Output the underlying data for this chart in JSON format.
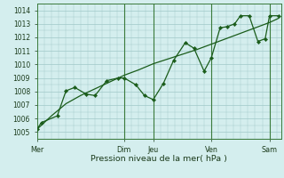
{
  "xlabel": "Pression niveau de la mer( hPa )",
  "background_color": "#d4eeee",
  "grid_color": "#a0c8c8",
  "line_color": "#1a5c1a",
  "vline_color": "#3a7a3a",
  "ylim": [
    1004.5,
    1014.5
  ],
  "yticks": [
    1005,
    1006,
    1007,
    1008,
    1009,
    1010,
    1011,
    1012,
    1013,
    1014
  ],
  "day_labels": [
    "Mer",
    "Dim",
    "Jeu",
    "Ven",
    "Sam"
  ],
  "day_positions": [
    0,
    3.0,
    4.0,
    6.0,
    8.0
  ],
  "xlim": [
    0,
    8.4
  ],
  "vline_positions": [
    3.0,
    4.0,
    6.0,
    8.0
  ],
  "smooth_line_x": [
    0,
    0.15,
    0.5,
    1.0,
    1.5,
    2.0,
    2.5,
    3.0,
    3.5,
    4.0,
    4.5,
    5.0,
    5.5,
    6.0,
    6.5,
    7.0,
    7.5,
    8.0,
    8.3
  ],
  "smooth_line_y": [
    1005.2,
    1005.5,
    1006.2,
    1007.1,
    1007.7,
    1008.2,
    1008.7,
    1009.2,
    1009.6,
    1010.05,
    1010.4,
    1010.75,
    1011.1,
    1011.5,
    1011.9,
    1012.3,
    1012.7,
    1013.1,
    1013.4
  ],
  "jagged_line_x": [
    0,
    0.15,
    0.7,
    1.0,
    1.3,
    1.7,
    2.0,
    2.4,
    2.8,
    3.0,
    3.4,
    3.7,
    4.0,
    4.35,
    4.7,
    5.1,
    5.4,
    5.75,
    6.0,
    6.3,
    6.55,
    6.8,
    7.0,
    7.3,
    7.6,
    7.85,
    8.0,
    8.3
  ],
  "jagged_line_y": [
    1005.2,
    1005.7,
    1006.2,
    1008.05,
    1008.3,
    1007.8,
    1007.7,
    1008.8,
    1009.0,
    1009.0,
    1008.5,
    1007.7,
    1007.4,
    1008.6,
    1010.3,
    1011.6,
    1011.2,
    1009.5,
    1010.5,
    1012.7,
    1012.8,
    1013.0,
    1013.6,
    1013.6,
    1011.7,
    1011.9,
    1013.6,
    1013.6
  ],
  "marker": "D",
  "marker_size": 2.2,
  "linewidth": 0.9,
  "ytick_fontsize": 5.5,
  "xtick_fontsize": 5.8,
  "xlabel_fontsize": 6.8
}
